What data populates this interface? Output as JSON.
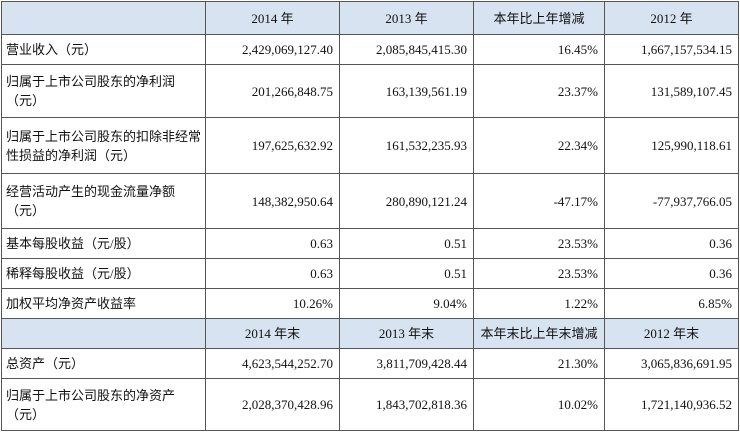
{
  "header1": [
    "",
    "2014 年",
    "2013 年",
    "本年比上年增减",
    "2012 年"
  ],
  "header2": [
    "",
    "2014 年末",
    "2013 年末",
    "本年末比上年末增减",
    "2012 年末"
  ],
  "rows1": [
    {
      "label": "营业收入（元）",
      "values": [
        "2,429,069,127.40",
        "2,085,845,415.30",
        "16.45%",
        "1,667,157,534.15"
      ]
    },
    {
      "label": "归属于上市公司股东的净利润（元）",
      "values": [
        "201,266,848.75",
        "163,139,561.19",
        "23.37%",
        "131,589,107.45"
      ]
    },
    {
      "label": "归属于上市公司股东的扣除非经常性损益的净利润（元）",
      "values": [
        "197,625,632.92",
        "161,532,235.93",
        "22.34%",
        "125,990,118.61"
      ]
    },
    {
      "label": "经营活动产生的现金流量净额（元）",
      "values": [
        "148,382,950.64",
        "280,890,121.24",
        "-47.17%",
        "-77,937,766.05"
      ]
    },
    {
      "label": "基本每股收益（元/股）",
      "values": [
        "0.63",
        "0.51",
        "23.53%",
        "0.36"
      ]
    },
    {
      "label": "稀释每股收益（元/股）",
      "values": [
        "0.63",
        "0.51",
        "23.53%",
        "0.36"
      ]
    },
    {
      "label": "加权平均净资产收益率",
      "values": [
        "10.26%",
        "9.04%",
        "1.22%",
        "6.85%"
      ]
    }
  ],
  "rows2": [
    {
      "label": "总资产（元）",
      "values": [
        "4,623,544,252.70",
        "3,811,709,428.44",
        "21.30%",
        "3,065,836,691.95"
      ]
    },
    {
      "label": "归属于上市公司股东的净资产（元）",
      "values": [
        "2,028,370,428.96",
        "1,843,702,818.36",
        "10.02%",
        "1,721,140,936.52"
      ]
    }
  ]
}
